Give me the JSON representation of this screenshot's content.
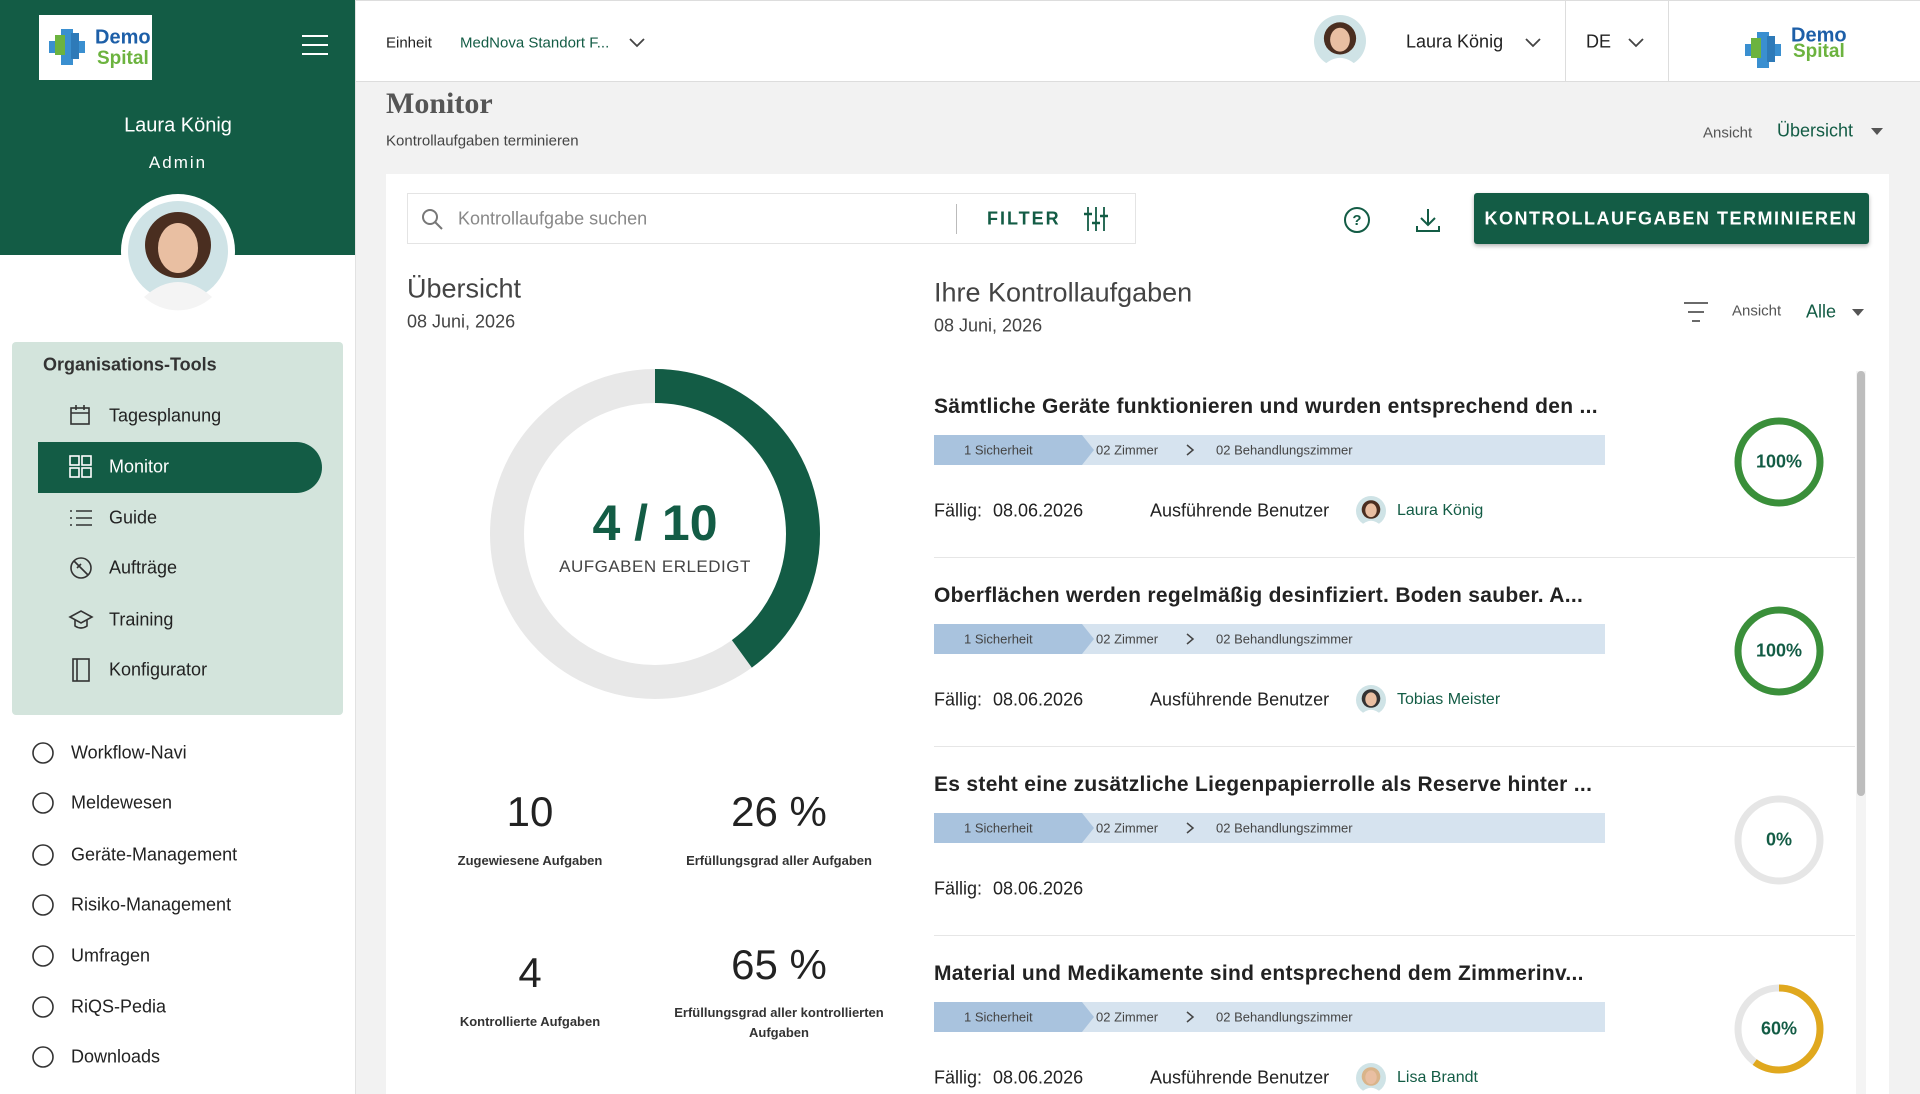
{
  "logo": {
    "line1": "Demo",
    "line2": "Spital"
  },
  "sidebar": {
    "user_name": "Laura König",
    "role": "Admin",
    "tools_title": "Organisations-Tools",
    "tools": [
      "Tagesplanung",
      "Monitor",
      "Guide",
      "Aufträge",
      "Training",
      "Konfigurator"
    ],
    "links": [
      "Workflow-Navi",
      "Meldewesen",
      "Geräte-Management",
      "Risiko-Management",
      "Umfragen",
      "RiQS-Pedia",
      "Downloads"
    ]
  },
  "header": {
    "unit_label": "Einheit",
    "unit_value": "MedNova Standort F...",
    "user_name": "Laura König",
    "language": "DE"
  },
  "page": {
    "title": "Monitor",
    "subtitle": "Kontrollaufgaben terminieren",
    "view_label": "Ansicht",
    "view_value": "Übersicht"
  },
  "toolbar": {
    "search_placeholder": "Kontrollaufgabe suchen",
    "filter": "FILTER",
    "button": "KONTROLLAUFGABEN TERMINIEREN"
  },
  "overview": {
    "title": "Übersicht",
    "date": "08 Juni, 2026",
    "donut": {
      "done": 4,
      "total": 10,
      "text": "4 / 10",
      "caption": "AUFGABEN ERLEDIGT",
      "color": "#135c45"
    },
    "stats": [
      {
        "value": "10",
        "label": "Zugewiesene Aufgaben"
      },
      {
        "value": "26 %",
        "label": "Erfüllungsgrad aller Aufgaben"
      },
      {
        "value": "4",
        "label": "Kontrollierte Aufgaben"
      },
      {
        "value": "65 %",
        "label": "Erfüllungsgrad aller kontrollierten Aufgaben"
      }
    ]
  },
  "tasks": {
    "title": "Ihre Kontrollaufgaben",
    "date": "08 Juni, 2026",
    "view_label": "Ansicht",
    "view_value": "Alle",
    "items": [
      {
        "title": "Sämtliche Geräte funktionieren und wurden entsprechend den ...",
        "breadcrumb": [
          "1 Sicherheit",
          "02 Zimmer",
          "02 Behandlungszimmer"
        ],
        "due_label": "Fällig:",
        "due": "08.06.2026",
        "user_label": "Ausführende Benutzer",
        "user": "Laura König",
        "progress": {
          "value": 100,
          "label": "100%"
        },
        "color": "#3a8f3a"
      },
      {
        "title": "Oberflächen werden regelmäßig desinfiziert. Boden sauber. A...",
        "breadcrumb": [
          "1 Sicherheit",
          "02 Zimmer",
          "02 Behandlungszimmer"
        ],
        "due_label": "Fällig:",
        "due": "08.06.2026",
        "user_label": "Ausführende Benutzer",
        "user": "Tobias Meister",
        "progress": {
          "value": 100,
          "label": "100%"
        },
        "color": "#3a8f3a"
      },
      {
        "title": "Es steht eine zusätzliche Liegenpapierrolle als Reserve hinter ...",
        "breadcrumb": [
          "1 Sicherheit",
          "02 Zimmer",
          "02 Behandlungszimmer"
        ],
        "due_label": "Fällig:",
        "due": "08.06.2026",
        "progress": {
          "value": 0,
          "label": "0%"
        },
        "color": "#3a8f3a"
      },
      {
        "title": "Material und Medikamente sind entsprechend dem Zimmerinv...",
        "breadcrumb": [
          "1 Sicherheit",
          "02 Zimmer",
          "02 Behandlungszimmer"
        ],
        "due_label": "Fällig:",
        "due": "08.06.2026",
        "user_label": "Ausführende Benutzer",
        "user": "Lisa Brandt",
        "progress": {
          "value": 60,
          "label": "60%"
        },
        "color": "#e0a81e"
      }
    ]
  }
}
